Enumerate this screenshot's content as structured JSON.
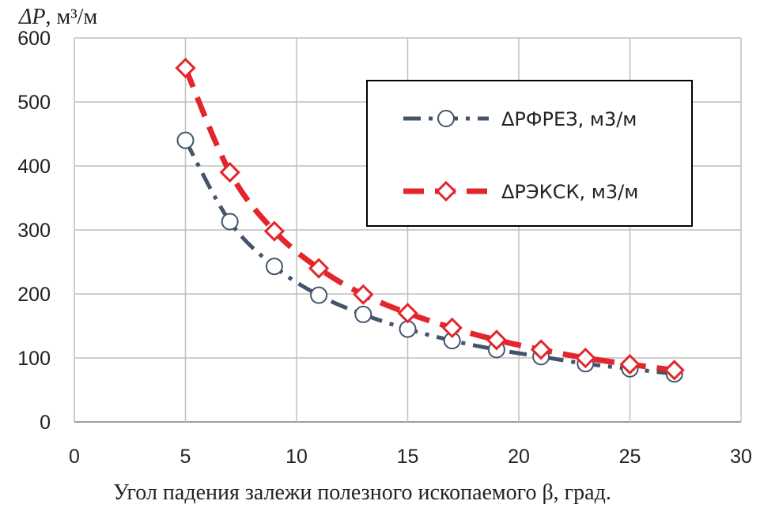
{
  "chart_data": {
    "type": "line",
    "title": "",
    "ylabel_symbol": "ΔP",
    "ylabel_unit": ", м³/м",
    "xlabel": "Угол падения залежи полезного ископаемого β, град.",
    "xlim": [
      0,
      30
    ],
    "ylim": [
      0,
      600
    ],
    "xticks": [
      "0",
      "5",
      "10",
      "15",
      "20",
      "25",
      "30"
    ],
    "yticks": [
      "0",
      "100",
      "200",
      "300",
      "400",
      "500",
      "600"
    ],
    "grid": true,
    "legend_position": "top-right",
    "series": [
      {
        "name": "ΔРФРЕЗ, м3/м",
        "color": "#44546a",
        "marker": "circle",
        "line_style": "dash-dot",
        "x": [
          5,
          7,
          9,
          11,
          13,
          15,
          17,
          19,
          21,
          23,
          25,
          27
        ],
        "y": [
          440,
          313,
          243,
          198,
          168,
          145,
          127,
          113,
          102,
          91,
          83,
          75
        ]
      },
      {
        "name": "ΔРЭКСК,  м3/м",
        "color": "#e3262b",
        "marker": "diamond",
        "line_style": "dash",
        "x": [
          5,
          7,
          9,
          11,
          13,
          15,
          17,
          19,
          21,
          23,
          25,
          27
        ],
        "y": [
          553,
          390,
          298,
          240,
          199,
          170,
          147,
          128,
          113,
          100,
          90,
          81
        ]
      }
    ]
  }
}
